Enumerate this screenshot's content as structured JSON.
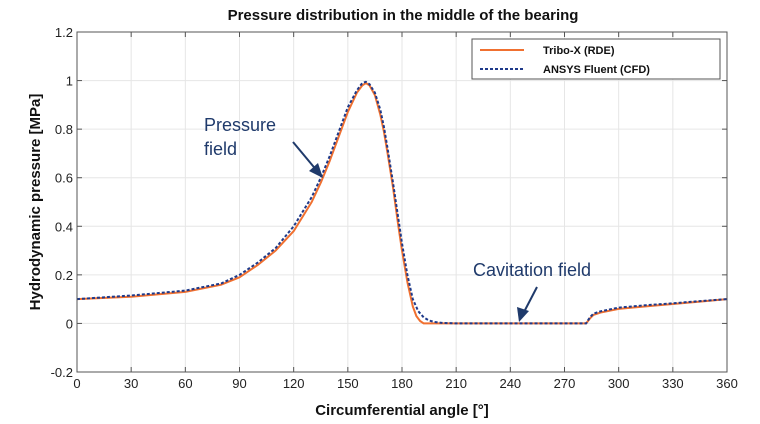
{
  "chart_data": {
    "type": "line",
    "title": "Pressure distribution in the middle of the bearing",
    "xlabel": "Circumferential angle [°]",
    "ylabel": "Hydrodynamic pressure [MPa]",
    "xlim": [
      0,
      360
    ],
    "ylim": [
      -0.2,
      1.2
    ],
    "xticks": [
      0,
      30,
      60,
      90,
      120,
      150,
      180,
      210,
      240,
      270,
      300,
      330,
      360
    ],
    "yticks": [
      -0.2,
      0,
      0.2,
      0.4,
      0.6,
      0.8,
      1,
      1.2
    ],
    "ytick_labels": [
      "-0.2",
      "0",
      "0.2",
      "0.4",
      "0.6",
      "0.8",
      "1",
      "1.2"
    ],
    "grid": true,
    "legend_position": "top-right",
    "series": [
      {
        "name": "Tribo-X (RDE)",
        "color": "#f07030",
        "style": "solid",
        "x": [
          0,
          30,
          60,
          80,
          90,
          100,
          110,
          120,
          130,
          135,
          140,
          145,
          150,
          155,
          158,
          160,
          162,
          165,
          168,
          170,
          172,
          175,
          178,
          180,
          183,
          186,
          188,
          190,
          192,
          195,
          210,
          240,
          270,
          282,
          284,
          286,
          290,
          300,
          315,
          330,
          345,
          360
        ],
        "y": [
          0.1,
          0.11,
          0.13,
          0.16,
          0.19,
          0.24,
          0.3,
          0.38,
          0.5,
          0.58,
          0.67,
          0.77,
          0.87,
          0.95,
          0.98,
          0.99,
          0.98,
          0.94,
          0.86,
          0.79,
          0.7,
          0.56,
          0.4,
          0.3,
          0.17,
          0.07,
          0.03,
          0.01,
          0.0,
          0.0,
          0.0,
          0.0,
          0.0,
          0.0,
          0.02,
          0.035,
          0.045,
          0.06,
          0.07,
          0.08,
          0.09,
          0.1
        ]
      },
      {
        "name": "ANSYS Fluent (CFD)",
        "color": "#1f3a8a",
        "style": "dashed",
        "x": [
          0,
          30,
          60,
          80,
          90,
          100,
          110,
          120,
          130,
          135,
          140,
          145,
          150,
          155,
          158,
          160,
          162,
          165,
          168,
          170,
          172,
          175,
          178,
          180,
          183,
          186,
          189,
          192,
          195,
          198,
          202,
          210,
          240,
          270,
          282,
          284,
          286,
          290,
          300,
          315,
          330,
          345,
          360
        ],
        "y": [
          0.1,
          0.115,
          0.135,
          0.165,
          0.2,
          0.25,
          0.31,
          0.4,
          0.52,
          0.6,
          0.69,
          0.79,
          0.89,
          0.96,
          0.99,
          0.995,
          0.985,
          0.95,
          0.88,
          0.81,
          0.72,
          0.58,
          0.43,
          0.33,
          0.2,
          0.1,
          0.05,
          0.025,
          0.012,
          0.006,
          0.002,
          0.0,
          0.0,
          0.0,
          0.0,
          0.025,
          0.04,
          0.05,
          0.065,
          0.075,
          0.083,
          0.092,
          0.1
        ]
      }
    ],
    "annotations": [
      {
        "text_lines": [
          "Pressure",
          "field"
        ],
        "target": [
          135,
          0.6
        ]
      },
      {
        "text_lines": [
          "Cavitation field"
        ],
        "target": [
          240,
          0.0
        ]
      }
    ]
  }
}
